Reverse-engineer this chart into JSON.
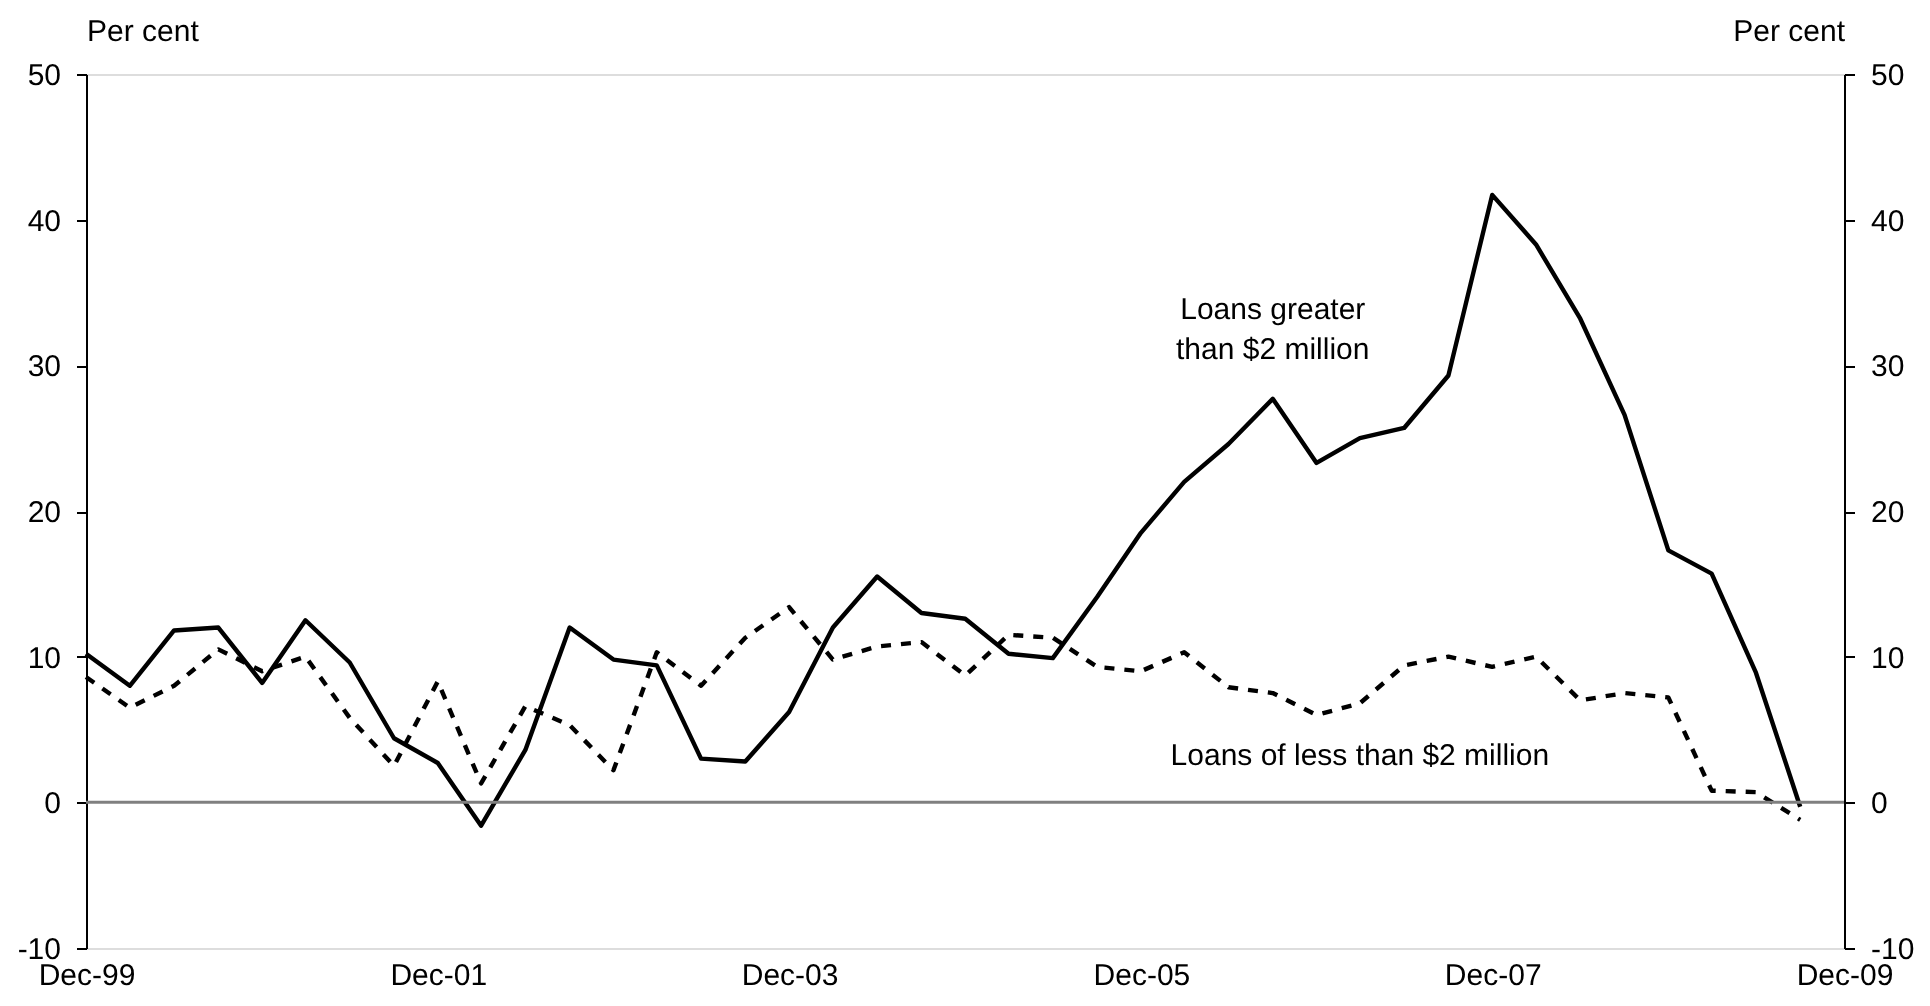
{
  "chart_data": {
    "type": "line",
    "ylabel": "Per cent",
    "y2label": "Per cent",
    "x": [
      "1999-12",
      "2000-03",
      "2000-06",
      "2000-09",
      "2000-12",
      "2001-03",
      "2001-06",
      "2001-09",
      "2001-12",
      "2002-03",
      "2002-06",
      "2002-09",
      "2002-12",
      "2003-03",
      "2003-06",
      "2003-09",
      "2003-12",
      "2004-03",
      "2004-06",
      "2004-09",
      "2004-12",
      "2005-03",
      "2005-06",
      "2005-09",
      "2005-12",
      "2006-03",
      "2006-06",
      "2006-09",
      "2006-12",
      "2007-03",
      "2007-06",
      "2007-09",
      "2007-12",
      "2008-03",
      "2008-06",
      "2008-09",
      "2008-12",
      "2009-03",
      "2009-06",
      "2009-09"
    ],
    "series": [
      {
        "name": "Loans greater than $2 million",
        "color": "#000000",
        "line_style": "solid",
        "values": [
          10.2,
          8.0,
          11.8,
          12.0,
          8.2,
          12.5,
          9.6,
          4.4,
          2.7,
          -1.6,
          3.6,
          12.0,
          9.8,
          9.4,
          3.0,
          2.8,
          6.2,
          12.0,
          15.5,
          13.0,
          12.6,
          10.2,
          9.9,
          14.1,
          18.5,
          22.0,
          24.6,
          27.7,
          23.3,
          25.0,
          25.7,
          29.3,
          41.7,
          38.3,
          33.2,
          26.6,
          17.3,
          15.7,
          8.9,
          -0.3
        ]
      },
      {
        "name": "Loans of less than $2 million",
        "color": "#000000",
        "line_style": "dashed",
        "values": [
          8.6,
          6.5,
          8.0,
          10.5,
          9.0,
          10.0,
          5.8,
          2.5,
          8.3,
          1.3,
          6.6,
          5.3,
          2.2,
          10.3,
          8.0,
          11.3,
          13.4,
          9.8,
          10.7,
          11.0,
          8.7,
          11.5,
          11.3,
          9.3,
          9.0,
          10.3,
          7.9,
          7.5,
          6.0,
          6.8,
          9.4,
          10.0,
          9.3,
          10.0,
          7.0,
          7.5,
          7.2,
          0.8,
          0.7,
          -1.2
        ]
      }
    ],
    "xlim": [
      "1999-12",
      "2009-12"
    ],
    "xticks": [
      {
        "value": "1999-12",
        "label": "Dec-99"
      },
      {
        "value": "2001-12",
        "label": "Dec-01"
      },
      {
        "value": "2003-12",
        "label": "Dec-03"
      },
      {
        "value": "2005-12",
        "label": "Dec-05"
      },
      {
        "value": "2007-12",
        "label": "Dec-07"
      },
      {
        "value": "2009-12",
        "label": "Dec-09"
      }
    ],
    "ylim": [
      -10,
      50
    ],
    "yticks": [
      -10,
      0,
      10,
      20,
      30,
      40,
      50
    ],
    "y2lim": [
      -10,
      50
    ],
    "y2ticks": [
      -10,
      0,
      10,
      20,
      30,
      40,
      50
    ],
    "ref_lines": [
      {
        "axis": "y",
        "value": 0
      }
    ],
    "grid": false,
    "legend": false,
    "marker": "none"
  }
}
